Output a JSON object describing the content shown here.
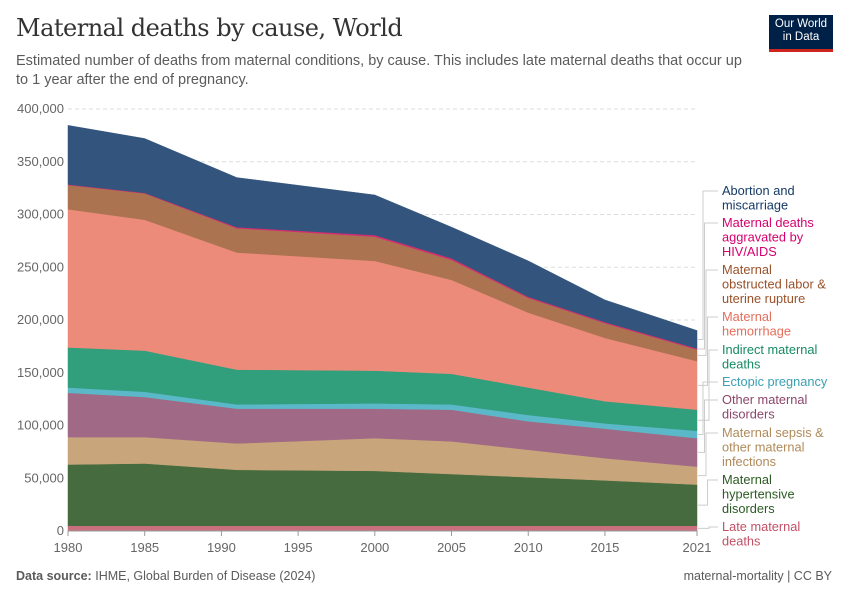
{
  "header": {
    "title": "Maternal deaths by cause, World",
    "subtitle": "Estimated number of deaths from maternal conditions, by cause. This includes late maternal deaths that occur up to 1 year after the end of pregnancy.",
    "logo_text": "Our World in Data"
  },
  "footer": {
    "source_label": "Data source:",
    "source": "IHME, Global Burden of Disease (2024)",
    "slug": "maternal-mortality | CC BY"
  },
  "chart_data": {
    "type": "area",
    "stacked": true,
    "title": "Maternal deaths by cause, World",
    "xlim": [
      1980,
      2021
    ],
    "ylim": [
      0,
      400000
    ],
    "grid": "horizontal dashed",
    "legend_placement": "right",
    "x_ticks": [
      "1980",
      "1985",
      "1990",
      "1995",
      "2000",
      "2005",
      "2010",
      "2015",
      "2021"
    ],
    "y_ticks": [
      "0",
      "50,000",
      "100,000",
      "150,000",
      "200,000",
      "250,000",
      "300,000",
      "350,000",
      "400,000"
    ],
    "x": [
      1980,
      1985,
      1991,
      2000,
      2005,
      2010,
      2015,
      2021
    ],
    "series": [
      {
        "name": "Late maternal deaths",
        "label_lines": [
          "Late maternal",
          "deaths"
        ],
        "color": "#ca6f7e",
        "text_color": "#c15065",
        "values": [
          5000,
          5000,
          5000,
          5000,
          5000,
          5000,
          5000,
          5000
        ]
      },
      {
        "name": "Maternal hypertensive disorders",
        "label_lines": [
          "Maternal",
          "hypertensive",
          "disorders"
        ],
        "color": "#466b3f",
        "text_color": "#2b5a23",
        "values": [
          58000,
          59000,
          53000,
          52000,
          49000,
          46000,
          43000,
          39000
        ]
      },
      {
        "name": "Maternal sepsis & other maternal infections",
        "label_lines": [
          "Maternal sepsis &",
          "other maternal",
          "infections"
        ],
        "color": "#c8a57a",
        "text_color": "#b08a5a",
        "values": [
          26000,
          25000,
          25000,
          31000,
          31000,
          26000,
          21000,
          17000
        ]
      },
      {
        "name": "Other maternal disorders",
        "label_lines": [
          "Other maternal",
          "disorders"
        ],
        "color": "#a06a86",
        "text_color": "#8c4569",
        "values": [
          42000,
          38000,
          33000,
          28000,
          30000,
          27000,
          28000,
          27000
        ]
      },
      {
        "name": "Ectopic pregnancy",
        "label_lines": [
          "Ectopic pregnancy"
        ],
        "color": "#5bb8c8",
        "text_color": "#3a9fb3",
        "values": [
          5000,
          5000,
          4000,
          5000,
          5000,
          6000,
          5000,
          7000
        ]
      },
      {
        "name": "Indirect maternal deaths",
        "label_lines": [
          "Indirect maternal",
          "deaths"
        ],
        "color": "#319e7c",
        "text_color": "#168a62",
        "values": [
          38000,
          39000,
          33000,
          31000,
          29000,
          26000,
          21000,
          20000
        ]
      },
      {
        "name": "Maternal hemorrhage",
        "label_lines": [
          "Maternal",
          "hemorrhage"
        ],
        "color": "#ec8b7a",
        "text_color": "#e56e5a",
        "values": [
          131000,
          124000,
          111000,
          104000,
          89000,
          71000,
          60000,
          46000
        ]
      },
      {
        "name": "Maternal obstructed labor & uterine rupture",
        "label_lines": [
          "Maternal",
          "obstructed labor &",
          "uterine rupture"
        ],
        "color": "#ab7350",
        "text_color": "#9a5129",
        "values": [
          23000,
          25000,
          23000,
          23000,
          19000,
          14000,
          14000,
          11000
        ]
      },
      {
        "name": "Maternal deaths aggravated by HIV/AIDS",
        "label_lines": [
          "Maternal deaths",
          "aggravated by",
          "HIV/AIDS"
        ],
        "color": "#d42b73",
        "text_color": "#d6006e",
        "values": [
          500,
          500,
          1000,
          1500,
          1500,
          1000,
          1000,
          1000
        ]
      },
      {
        "name": "Abortion and miscarriage",
        "label_lines": [
          "Abortion and",
          "miscarriage"
        ],
        "color": "#33557d",
        "text_color": "#153a66",
        "values": [
          56000,
          51500,
          47000,
          38000,
          29500,
          34000,
          21000,
          17000
        ]
      }
    ]
  }
}
